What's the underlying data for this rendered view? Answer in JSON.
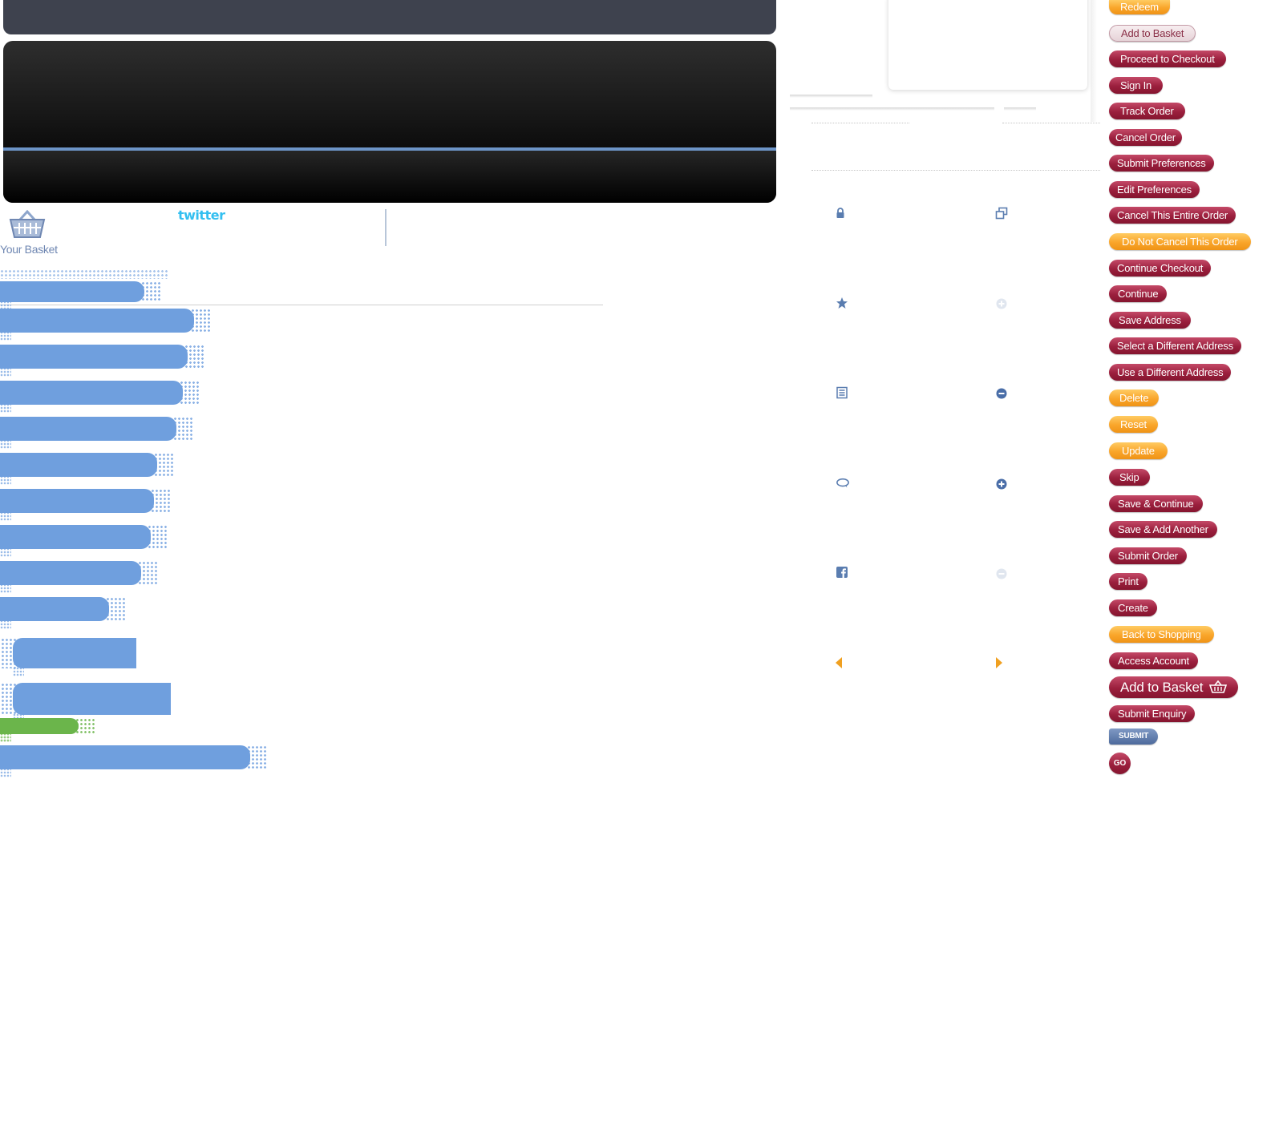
{
  "basket": {
    "label": "Your Basket"
  },
  "twitter": {
    "logo_text": "twitter"
  },
  "colors": {
    "accent_blue": "#6f9fde",
    "accent_green": "#6bb54b",
    "button_red": "#9b1f3d",
    "button_orange": "#f9a52a",
    "icon_blue": "#5a7db0",
    "arrow_orange": "#f0a020"
  },
  "icon_names": {
    "left": [
      "lock-icon",
      "star-icon",
      "list-icon",
      "speech-bubble-icon",
      "facebook-icon",
      "arrow-left-icon"
    ],
    "right": [
      "popup-window-icon",
      "plus-circle-light-icon",
      "minus-circle-icon",
      "plus-circle-icon",
      "minus-circle-light-icon",
      "arrow-right-icon"
    ]
  },
  "buttons": [
    {
      "label": "Redeem",
      "style": "orange"
    },
    {
      "label": "Add to Basket",
      "style": "ghost"
    },
    {
      "label": "Proceed to Checkout",
      "style": "red"
    },
    {
      "label": "Sign In",
      "style": "red"
    },
    {
      "label": "Track Order",
      "style": "red"
    },
    {
      "label": "Cancel Order",
      "style": "red"
    },
    {
      "label": "Submit Preferences",
      "style": "red"
    },
    {
      "label": "Edit Preferences",
      "style": "red"
    },
    {
      "label": "Cancel This Entire Order",
      "style": "red"
    },
    {
      "label": "Do Not Cancel This Order",
      "style": "orange"
    },
    {
      "label": "Continue Checkout",
      "style": "red"
    },
    {
      "label": "Continue",
      "style": "red"
    },
    {
      "label": "Save Address",
      "style": "red"
    },
    {
      "label": "Select a Different Address",
      "style": "red"
    },
    {
      "label": "Use a Different Address",
      "style": "red"
    },
    {
      "label": "Delete",
      "style": "orange"
    },
    {
      "label": "Reset",
      "style": "orange"
    },
    {
      "label": "Update",
      "style": "orange"
    },
    {
      "label": "Skip",
      "style": "red"
    },
    {
      "label": "Save & Continue",
      "style": "red"
    },
    {
      "label": "Save & Add Another",
      "style": "red"
    },
    {
      "label": "Submit Order",
      "style": "red"
    },
    {
      "label": "Print",
      "style": "red"
    },
    {
      "label": "Create",
      "style": "red"
    },
    {
      "label": "Back to Shopping",
      "style": "orange"
    },
    {
      "label": "Access Account",
      "style": "red"
    },
    {
      "label": "Add to Basket",
      "style": "large"
    },
    {
      "label": "Submit Enquiry",
      "style": "red"
    },
    {
      "label": "SUBMIT",
      "style": "submit"
    },
    {
      "label": "GO",
      "style": "go"
    }
  ]
}
